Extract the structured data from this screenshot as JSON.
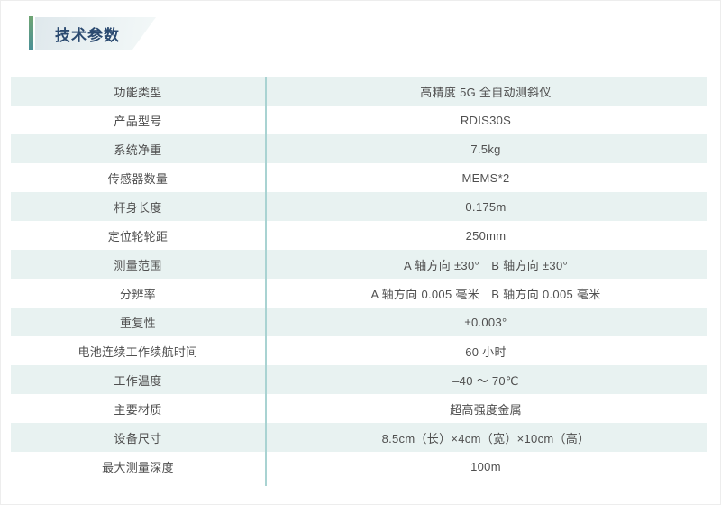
{
  "page": {
    "title": "技术参数"
  },
  "colors": {
    "accent_bar_top": "#6fa573",
    "accent_bar_bottom": "#4a9097",
    "banner_bg_left": "#dfe8ec",
    "banner_bg_right": "#f3f8f8",
    "title_text": "#2b4a70",
    "row_alt_bg": "#e8f2f1",
    "row_bg": "#ffffff",
    "column_divider": "#a9d3d2",
    "cell_text": "#4f4f4f"
  },
  "table": {
    "rows": [
      {
        "label": "功能类型",
        "value": "高精度 5G 全自动测斜仪"
      },
      {
        "label": "产品型号",
        "value": "RDIS30S"
      },
      {
        "label": "系统净重",
        "value": "7.5kg"
      },
      {
        "label": "传感器数量",
        "value": "MEMS*2"
      },
      {
        "label": "杆身长度",
        "value": "0.175m"
      },
      {
        "label": "定位轮轮距",
        "value": "250mm"
      },
      {
        "label": "测量范围",
        "value": "A 轴方向 ±30°　B 轴方向 ±30°"
      },
      {
        "label": "分辨率",
        "value": "A 轴方向 0.005 毫米　B 轴方向 0.005 毫米"
      },
      {
        "label": "重复性",
        "value": "±0.003°"
      },
      {
        "label": "电池连续工作续航时间",
        "value": "60 小时"
      },
      {
        "label": "工作温度",
        "value": "–40 ～ 70℃"
      },
      {
        "label": "主要材质",
        "value": "超高强度金属"
      },
      {
        "label": "设备尺寸",
        "value": "8.5cm（长）×4cm（宽）×10cm（高）"
      },
      {
        "label": "最大测量深度",
        "value": "100m"
      }
    ]
  }
}
